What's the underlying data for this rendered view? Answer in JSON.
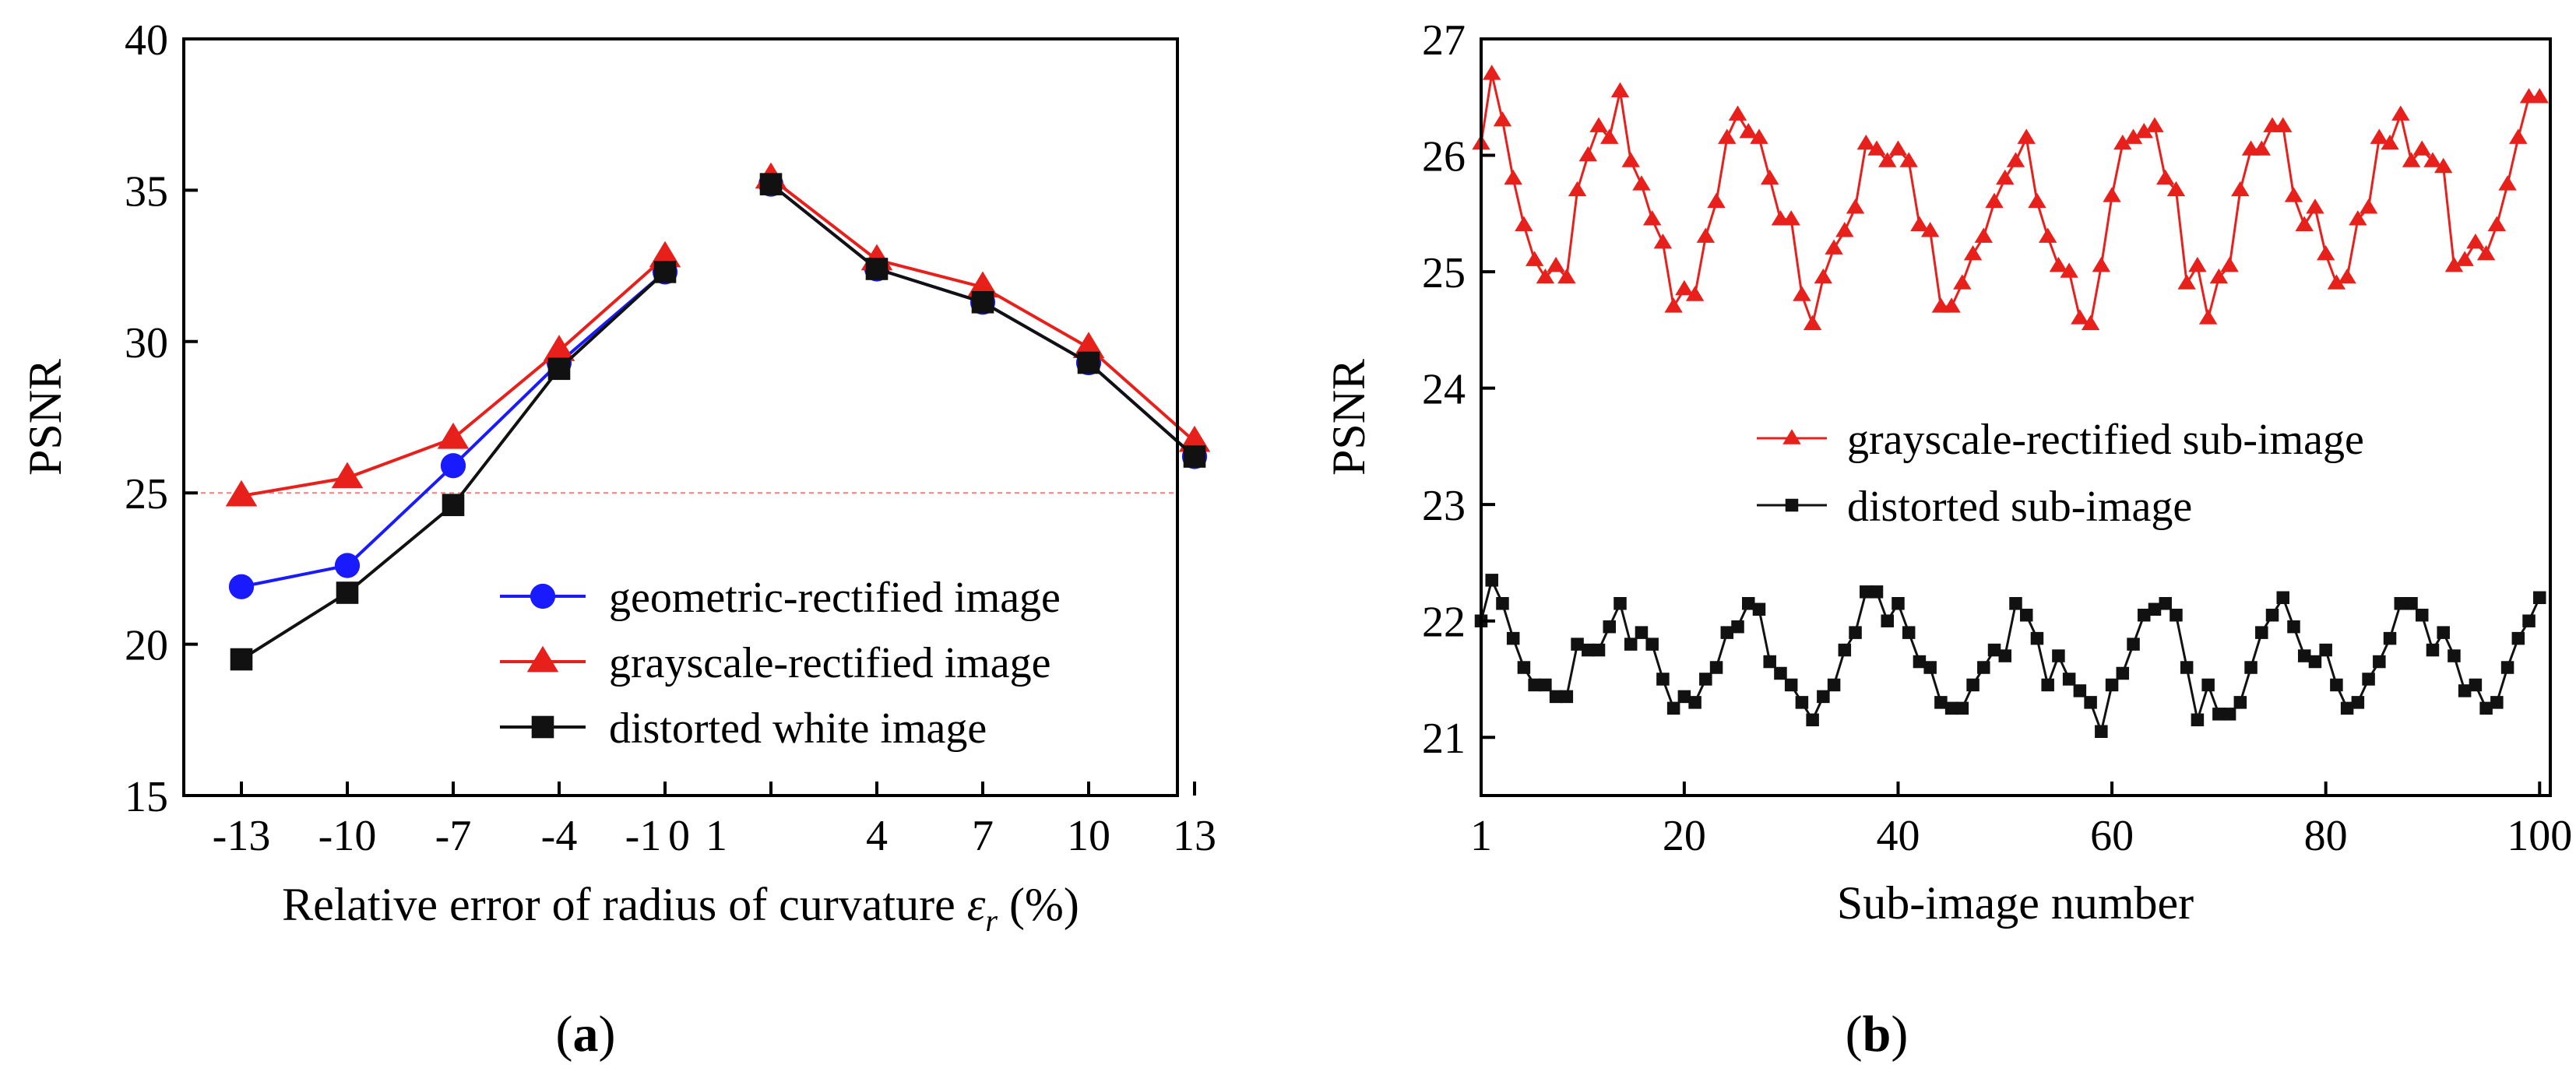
{
  "chart_data": [
    {
      "type": "line",
      "panel_label": "a",
      "xlabel_prefix": "Relative error  of radius of curvature ",
      "xlabel_symbol": "ε",
      "xlabel_subscript": "r",
      "xlabel_suffix": " (%)",
      "ylabel": "PSNR",
      "ylim": [
        15,
        40
      ],
      "yticks": [
        15,
        20,
        25,
        30,
        35,
        40
      ],
      "x_tick_labels": [
        "-13",
        "-10",
        "-7",
        "-4",
        "-1",
        "0",
        "1",
        "4",
        "7",
        "10",
        "13"
      ],
      "reference_line": 25,
      "legend_position": "lower-right",
      "grid": false,
      "series": [
        {
          "name": "geometric-rectified image",
          "color": "#1a1aff",
          "marker": "circle",
          "segments": [
            {
              "x": [
                -13,
                -10,
                -7,
                -4,
                -1
              ],
              "y": [
                21.9,
                22.6,
                25.9,
                29.3,
                32.3
              ]
            },
            {
              "x": [
                1,
                4,
                7,
                10,
                13
              ],
              "y": [
                35.2,
                32.4,
                31.3,
                29.3,
                26.2
              ]
            }
          ]
        },
        {
          "name": "grayscale-rectified image",
          "color": "#e8201c",
          "marker": "triangle",
          "segments": [
            {
              "x": [
                -13,
                -10,
                -7,
                -4,
                -1
              ],
              "y": [
                24.9,
                25.5,
                26.8,
                29.7,
                32.8
              ]
            },
            {
              "x": [
                1,
                4,
                7,
                10,
                13
              ],
              "y": [
                35.4,
                32.7,
                31.8,
                29.8,
                26.7
              ]
            }
          ]
        },
        {
          "name": "distorted white image",
          "color": "#111111",
          "marker": "square",
          "segments": [
            {
              "x": [
                -13,
                -10,
                -7,
                -4,
                -1
              ],
              "y": [
                19.5,
                21.7,
                24.6,
                29.1,
                32.3
              ]
            },
            {
              "x": [
                1,
                4,
                7,
                10,
                13
              ],
              "y": [
                35.2,
                32.4,
                31.3,
                29.3,
                26.2
              ]
            }
          ]
        }
      ]
    },
    {
      "type": "line",
      "panel_label": "b",
      "xlabel": "Sub-image number",
      "ylabel": "PSNR",
      "xlim": [
        1,
        101
      ],
      "ylim": [
        20.5,
        27
      ],
      "xticks": [
        1,
        20,
        40,
        60,
        80,
        100
      ],
      "yticks": [
        21,
        22,
        23,
        24,
        25,
        26,
        27
      ],
      "legend_position": "middle-right",
      "grid": false,
      "series": [
        {
          "name": "grayscale-rectified sub-image",
          "color": "#e8201c",
          "marker": "triangle",
          "x_start": 1,
          "values": [
            26.1,
            26.7,
            26.3,
            25.8,
            25.4,
            25.1,
            24.95,
            25.05,
            24.95,
            25.7,
            26.0,
            26.25,
            26.15,
            26.55,
            25.95,
            25.75,
            25.45,
            25.25,
            24.7,
            24.85,
            24.8,
            25.3,
            25.6,
            26.15,
            26.35,
            26.2,
            26.15,
            25.8,
            25.45,
            25.45,
            24.8,
            24.55,
            24.95,
            25.2,
            25.35,
            25.55,
            26.1,
            26.05,
            25.95,
            26.05,
            25.95,
            25.4,
            25.35,
            24.7,
            24.7,
            24.9,
            25.15,
            25.3,
            25.6,
            25.8,
            25.95,
            26.15,
            25.6,
            25.3,
            25.05,
            25.0,
            24.6,
            24.55,
            25.05,
            25.65,
            26.1,
            26.15,
            26.2,
            26.25,
            25.8,
            25.7,
            24.9,
            25.05,
            24.6,
            24.95,
            25.05,
            25.7,
            26.05,
            26.05,
            26.25,
            26.25,
            25.65,
            25.4,
            25.55,
            25.15,
            24.9,
            24.95,
            25.45,
            25.55,
            26.15,
            26.1,
            26.35,
            25.95,
            26.05,
            25.95,
            25.9,
            25.05,
            25.1,
            25.25,
            25.15,
            25.4,
            25.75,
            26.15,
            26.5,
            26.5
          ]
        },
        {
          "name": "distorted sub-image",
          "color": "#111111",
          "marker": "square",
          "x_start": 1,
          "values": [
            22.0,
            22.35,
            22.15,
            21.85,
            21.6,
            21.45,
            21.45,
            21.35,
            21.35,
            21.8,
            21.75,
            21.75,
            21.95,
            22.15,
            21.8,
            21.9,
            21.8,
            21.5,
            21.25,
            21.35,
            21.3,
            21.5,
            21.6,
            21.9,
            21.95,
            22.15,
            22.1,
            21.65,
            21.55,
            21.45,
            21.3,
            21.15,
            21.35,
            21.45,
            21.75,
            21.9,
            22.25,
            22.25,
            22.0,
            22.15,
            21.9,
            21.65,
            21.6,
            21.3,
            21.25,
            21.25,
            21.45,
            21.6,
            21.75,
            21.7,
            22.15,
            22.05,
            21.85,
            21.45,
            21.7,
            21.5,
            21.4,
            21.3,
            21.05,
            21.45,
            21.55,
            21.8,
            22.05,
            22.1,
            22.15,
            22.05,
            21.6,
            21.15,
            21.45,
            21.2,
            21.2,
            21.3,
            21.6,
            21.9,
            22.05,
            22.2,
            21.95,
            21.7,
            21.65,
            21.75,
            21.45,
            21.25,
            21.3,
            21.5,
            21.65,
            21.85,
            22.15,
            22.15,
            22.05,
            21.75,
            21.9,
            21.7,
            21.4,
            21.45,
            21.25,
            21.3,
            21.6,
            21.85,
            22.0,
            22.2
          ]
        }
      ]
    }
  ]
}
